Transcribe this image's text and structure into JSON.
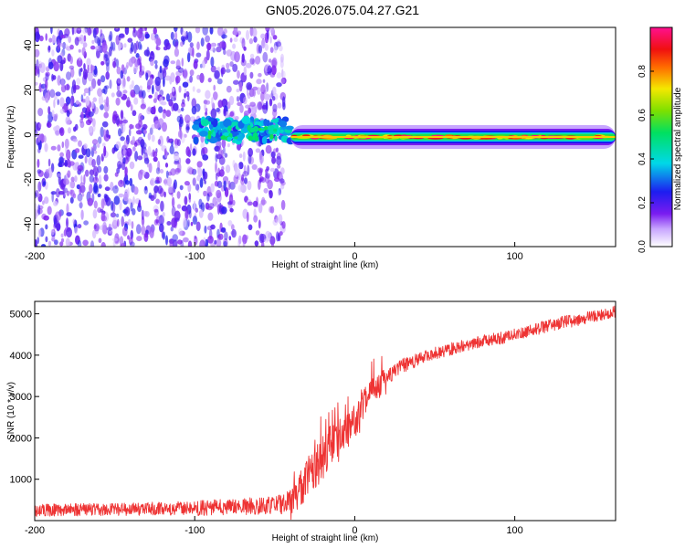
{
  "figure_title": "GN05.2026.075.04.27.G21",
  "chart_data": [
    {
      "type": "heatmap",
      "title": "GN05.2026.075.04.27.G21",
      "xlabel": "Height of straight line (km)",
      "ylabel": "Frequency (Hz)",
      "xlim": [
        -200,
        163
      ],
      "ylim": [
        -50,
        48
      ],
      "xticks": [
        -200,
        -100,
        0,
        100
      ],
      "yticks": [
        -40,
        -20,
        0,
        20,
        40
      ],
      "grid": false,
      "colorbar": {
        "label": "Normalized spectral amplitude",
        "range": [
          0,
          1
        ],
        "ticks": [
          0,
          0.2,
          0.4,
          0.6,
          0.8
        ],
        "tick_labels": [
          "0.0",
          "0.2",
          "0.4",
          "0.6",
          "0.8"
        ],
        "colormap": "rainbow (white-violet-blue-cyan-green-yellow-red-magenta)"
      },
      "features": [
        {
          "name": "noise",
          "x_range": [
            -200,
            -44
          ],
          "freq_range": [
            -50,
            48
          ],
          "amplitude": [
            0.05,
            0.25
          ]
        },
        {
          "name": "emerging-signal",
          "x_range": [
            -100,
            -40
          ],
          "center_freq": 2,
          "amplitude": [
            0.25,
            0.45
          ]
        },
        {
          "name": "carrier-line",
          "x_range": [
            -40,
            163
          ],
          "center_freq": -1,
          "amplitude": [
            0.6,
            1.0
          ]
        }
      ]
    },
    {
      "type": "line",
      "xlabel": "Height of straight line (km)",
      "ylabel": "SNR (10 * v/v)",
      "xlim": [
        -200,
        163
      ],
      "ylim": [
        0,
        5300
      ],
      "xticks": [
        -200,
        -100,
        0,
        100
      ],
      "yticks": [
        1000,
        2000,
        3000,
        4000,
        5000
      ],
      "grid": false,
      "series": [
        {
          "name": "SNR",
          "color": "#ee3333",
          "x": [
            -200,
            -150,
            -100,
            -70,
            -50,
            -40,
            -35,
            -30,
            -25,
            -20,
            -15,
            -10,
            -5,
            0,
            5,
            10,
            15,
            20,
            25,
            30,
            40,
            50,
            60,
            70,
            80,
            90,
            100,
            110,
            120,
            130,
            140,
            150,
            163
          ],
          "y": [
            250,
            270,
            300,
            340,
            380,
            450,
            700,
            1000,
            1300,
            1550,
            1800,
            2000,
            2200,
            2400,
            2800,
            3100,
            3300,
            3500,
            3600,
            3750,
            3900,
            4050,
            4150,
            4250,
            4350,
            4400,
            4500,
            4600,
            4700,
            4800,
            4850,
            4950,
            5050
          ],
          "noise": [
            150,
            150,
            180,
            200,
            220,
            300,
            400,
            500,
            550,
            550,
            500,
            450,
            400,
            400,
            350,
            300,
            250,
            200,
            200,
            200,
            150,
            150,
            150,
            150,
            150,
            150,
            150,
            150,
            150,
            150,
            150,
            150,
            150
          ]
        }
      ]
    }
  ]
}
